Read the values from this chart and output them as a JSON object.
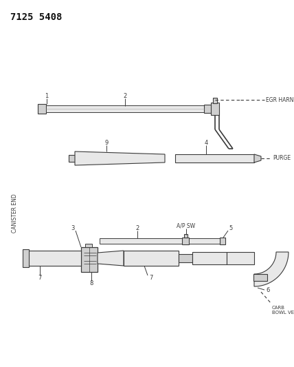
{
  "title": "7125 5408",
  "bg_color": "#ffffff",
  "lc": "#3a3a3a",
  "figsize": [
    4.28,
    5.33
  ],
  "dpi": 100,
  "annotations": {
    "egr_harness": "EGR HARNESS",
    "purge": "PURGE",
    "canister_end": "CANISTER END",
    "ap_sw": "A/P SW",
    "carb_bowl_vent": "CARB\nBOWL VENT"
  }
}
